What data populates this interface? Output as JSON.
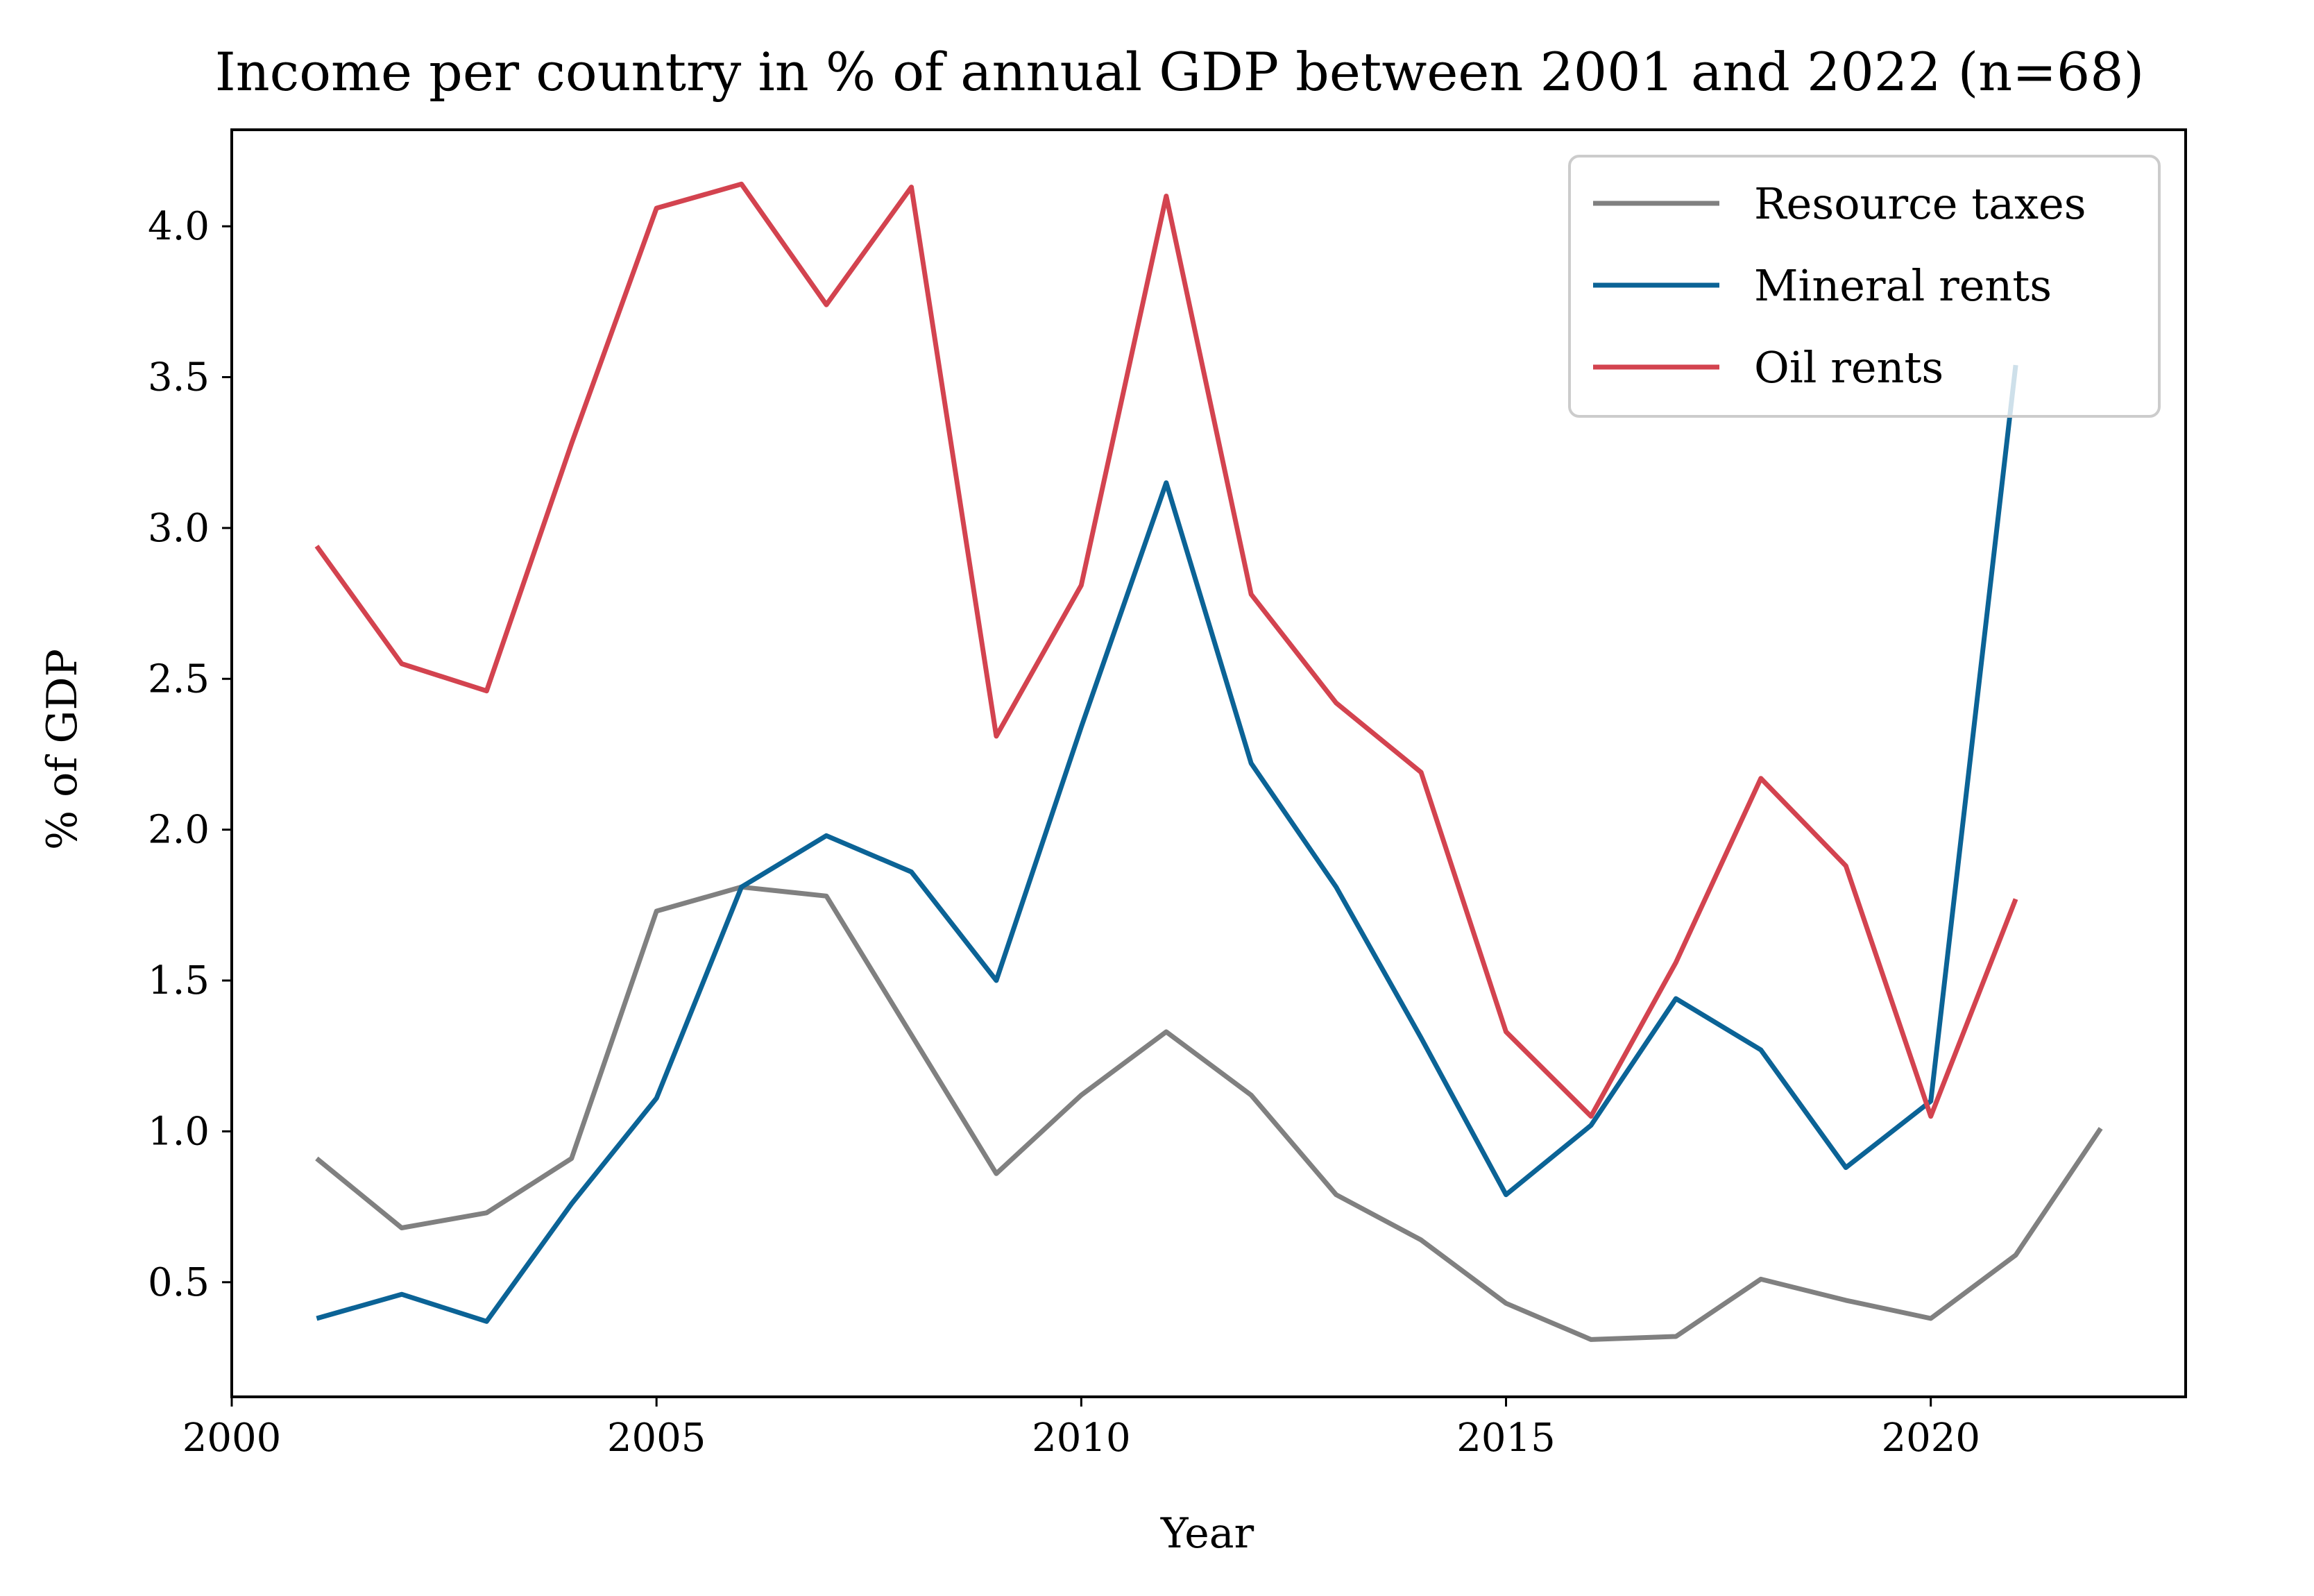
{
  "chart_data": {
    "type": "line",
    "title": "Income per country in % of annual GDP between 2001 and 2022 (n=68)",
    "xlabel": "Year",
    "ylabel": "% of GDP",
    "xlim": [
      2000,
      2023
    ],
    "ylim": [
      0.12,
      4.32
    ],
    "xticks": [
      2000,
      2005,
      2010,
      2015,
      2020
    ],
    "xtick_labels": [
      "2000",
      "2005",
      "2010",
      "2015",
      "2020"
    ],
    "yticks": [
      0.5,
      1.0,
      1.5,
      2.0,
      2.5,
      3.0,
      3.5,
      4.0
    ],
    "ytick_labels": [
      "0.5",
      "1.0",
      "1.5",
      "2.0",
      "2.5",
      "3.0",
      "3.5",
      "4.0"
    ],
    "grid": false,
    "legend_position": "top-right",
    "series": [
      {
        "name": "Resource taxes",
        "color": "#808080",
        "x": [
          2001,
          2002,
          2003,
          2004,
          2005,
          2006,
          2007,
          2008,
          2009,
          2010,
          2011,
          2012,
          2013,
          2014,
          2015,
          2016,
          2017,
          2018,
          2019,
          2020,
          2021,
          2022
        ],
        "values": [
          0.91,
          0.68,
          0.73,
          0.91,
          1.73,
          1.81,
          1.78,
          1.32,
          0.86,
          1.12,
          1.33,
          1.12,
          0.79,
          0.64,
          0.43,
          0.31,
          0.32,
          0.51,
          0.44,
          0.38,
          0.59,
          1.01
        ]
      },
      {
        "name": "Mineral rents",
        "color": "#0b6396",
        "x": [
          2001,
          2002,
          2003,
          2004,
          2005,
          2006,
          2007,
          2008,
          2009,
          2010,
          2011,
          2012,
          2013,
          2014,
          2015,
          2016,
          2017,
          2018,
          2019,
          2020,
          2021
        ],
        "values": [
          0.38,
          0.46,
          0.37,
          0.76,
          1.11,
          1.81,
          1.98,
          1.86,
          1.5,
          2.34,
          3.15,
          2.22,
          1.81,
          1.31,
          0.79,
          1.02,
          1.44,
          1.27,
          0.88,
          1.1,
          3.54
        ]
      },
      {
        "name": "Oil rents",
        "color": "#d3434f",
        "x": [
          2001,
          2002,
          2003,
          2004,
          2005,
          2006,
          2007,
          2008,
          2009,
          2010,
          2011,
          2012,
          2013,
          2014,
          2015,
          2016,
          2017,
          2018,
          2019,
          2020,
          2021
        ],
        "values": [
          2.94,
          2.55,
          2.46,
          3.28,
          4.06,
          4.14,
          3.74,
          4.13,
          2.31,
          2.81,
          4.1,
          2.78,
          2.42,
          2.19,
          1.33,
          1.05,
          1.56,
          2.17,
          1.88,
          1.05,
          1.77
        ]
      }
    ]
  }
}
